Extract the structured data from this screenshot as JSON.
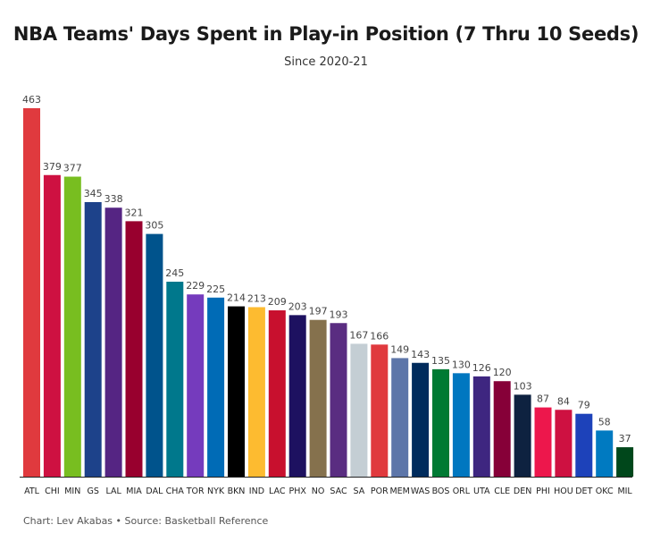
{
  "chart_data": {
    "type": "bar",
    "title": "NBA Teams' Days Spent in Play-in Position (7 Thru 10 Seeds)",
    "subtitle": "Since 2020-21",
    "xlabel": "",
    "ylabel": "",
    "ylim": [
      0,
      463
    ],
    "grid": false,
    "categories": [
      "ATL",
      "CHI",
      "MIN",
      "GS",
      "LAL",
      "MIA",
      "DAL",
      "CHA",
      "TOR",
      "NYK",
      "BKN",
      "IND",
      "LAC",
      "PHX",
      "NO",
      "SAC",
      "SA",
      "POR",
      "MEM",
      "WAS",
      "BOS",
      "ORL",
      "UTA",
      "CLE",
      "DEN",
      "PHI",
      "HOU",
      "DET",
      "OKC",
      "MIL"
    ],
    "values": [
      463,
      379,
      377,
      345,
      338,
      321,
      305,
      245,
      229,
      225,
      214,
      213,
      209,
      203,
      197,
      193,
      167,
      166,
      149,
      143,
      135,
      130,
      126,
      120,
      103,
      87,
      84,
      79,
      58,
      37
    ],
    "colors": [
      "#e03a3e",
      "#ce1141",
      "#78be20",
      "#1d428a",
      "#552583",
      "#98002e",
      "#00538c",
      "#00788c",
      "#753bbd",
      "#006bb6",
      "#000000",
      "#fdbb30",
      "#c8102e",
      "#1d1160",
      "#85714d",
      "#5a2d81",
      "#c4ced4",
      "#e03a3e",
      "#5d76a9",
      "#002b5c",
      "#007a33",
      "#0077c0",
      "#3e2680",
      "#860038",
      "#0e2240",
      "#ed174c",
      "#ce1141",
      "#1d42ba",
      "#007ac1",
      "#00471b"
    ]
  },
  "caption": "Chart: Lev Akabas • Source: Basketball Reference"
}
